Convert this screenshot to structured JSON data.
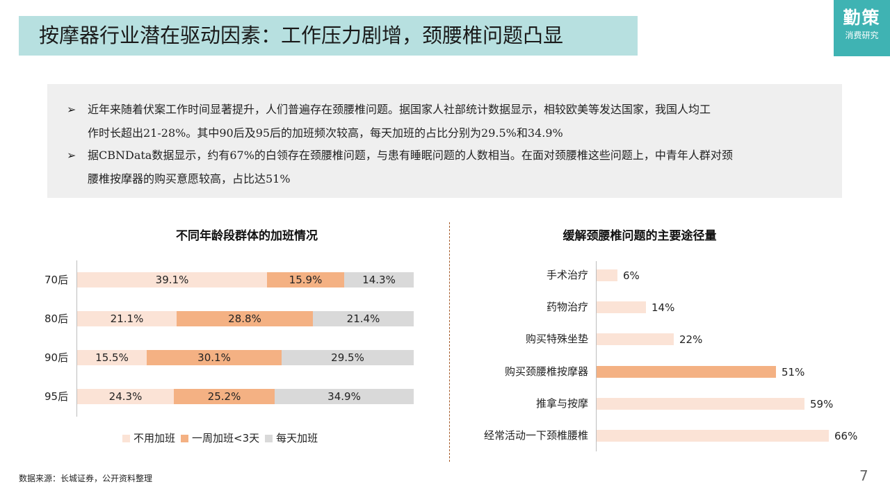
{
  "header": {
    "title": "按摩器行业潜在驱动因素：工作压力剧增，颈腰椎问题凸显",
    "brand_main": "勤策",
    "brand_sub": "消费研究"
  },
  "summary": {
    "bullet_symbol": "➢",
    "bullets": [
      {
        "line1": "近年来随着伏案工作时间显著提升，人们普遍存在颈腰椎问题。据国家人社部统计数据显示，相较欧美等发达国家，我国人均工",
        "line2": "作时长超出21-28%。其中90后及95后的加班频次较高，每天加班的占比分别为29.5%和34.9%"
      },
      {
        "line1": "据CBNData数据显示，约有67%的白领存在颈腰椎问题，与患有睡眠问题的人数相当。在面对颈腰椎这些问题上，中青年人群对颈",
        "line2": "腰椎按摩器的购买意愿较高，占比达51%"
      }
    ]
  },
  "chart_data": [
    {
      "type": "bar",
      "orientation": "horizontal",
      "stacked": true,
      "title": "不同年龄段群体的加班情况",
      "categories": [
        "70后",
        "80后",
        "90后",
        "95后"
      ],
      "series": [
        {
          "name": "不用加班",
          "values": [
            39.1,
            21.1,
            15.5,
            24.3
          ],
          "labels": [
            "39.1%",
            "21.1%",
            "15.5%",
            "24.3%"
          ],
          "color": "#fbe3d6"
        },
        {
          "name": "一周加班<3天",
          "values": [
            15.9,
            28.8,
            30.1,
            25.2
          ],
          "labels": [
            "15.9%",
            "28.8%",
            "30.1%",
            "25.2%"
          ],
          "color": "#f4b183"
        },
        {
          "name": "每天加班",
          "values": [
            14.3,
            21.4,
            29.5,
            34.9
          ],
          "labels": [
            "14.3%",
            "21.4%",
            "29.5%",
            "34.9%"
          ],
          "color": "#d9d9d9"
        }
      ],
      "legend_position": "bottom"
    },
    {
      "type": "bar",
      "orientation": "horizontal",
      "title": "缓解颈腰椎问题的主要途径量",
      "categories": [
        "手术治疗",
        "药物治疗",
        "购买特殊坐垫",
        "购买颈腰椎按摩器",
        "推拿与按摩",
        "经常活动一下颈椎腰椎"
      ],
      "values": [
        6,
        14,
        22,
        51,
        59,
        66
      ],
      "labels": [
        "6%",
        "14%",
        "22%",
        "51%",
        "59%",
        "66%"
      ],
      "highlight_index": 3,
      "colors": {
        "normal": "#fbe3d6",
        "highlight": "#f4b183"
      }
    }
  ],
  "footer": {
    "source": "数据来源：长城证券，公开资料整理",
    "page_number": "7"
  }
}
